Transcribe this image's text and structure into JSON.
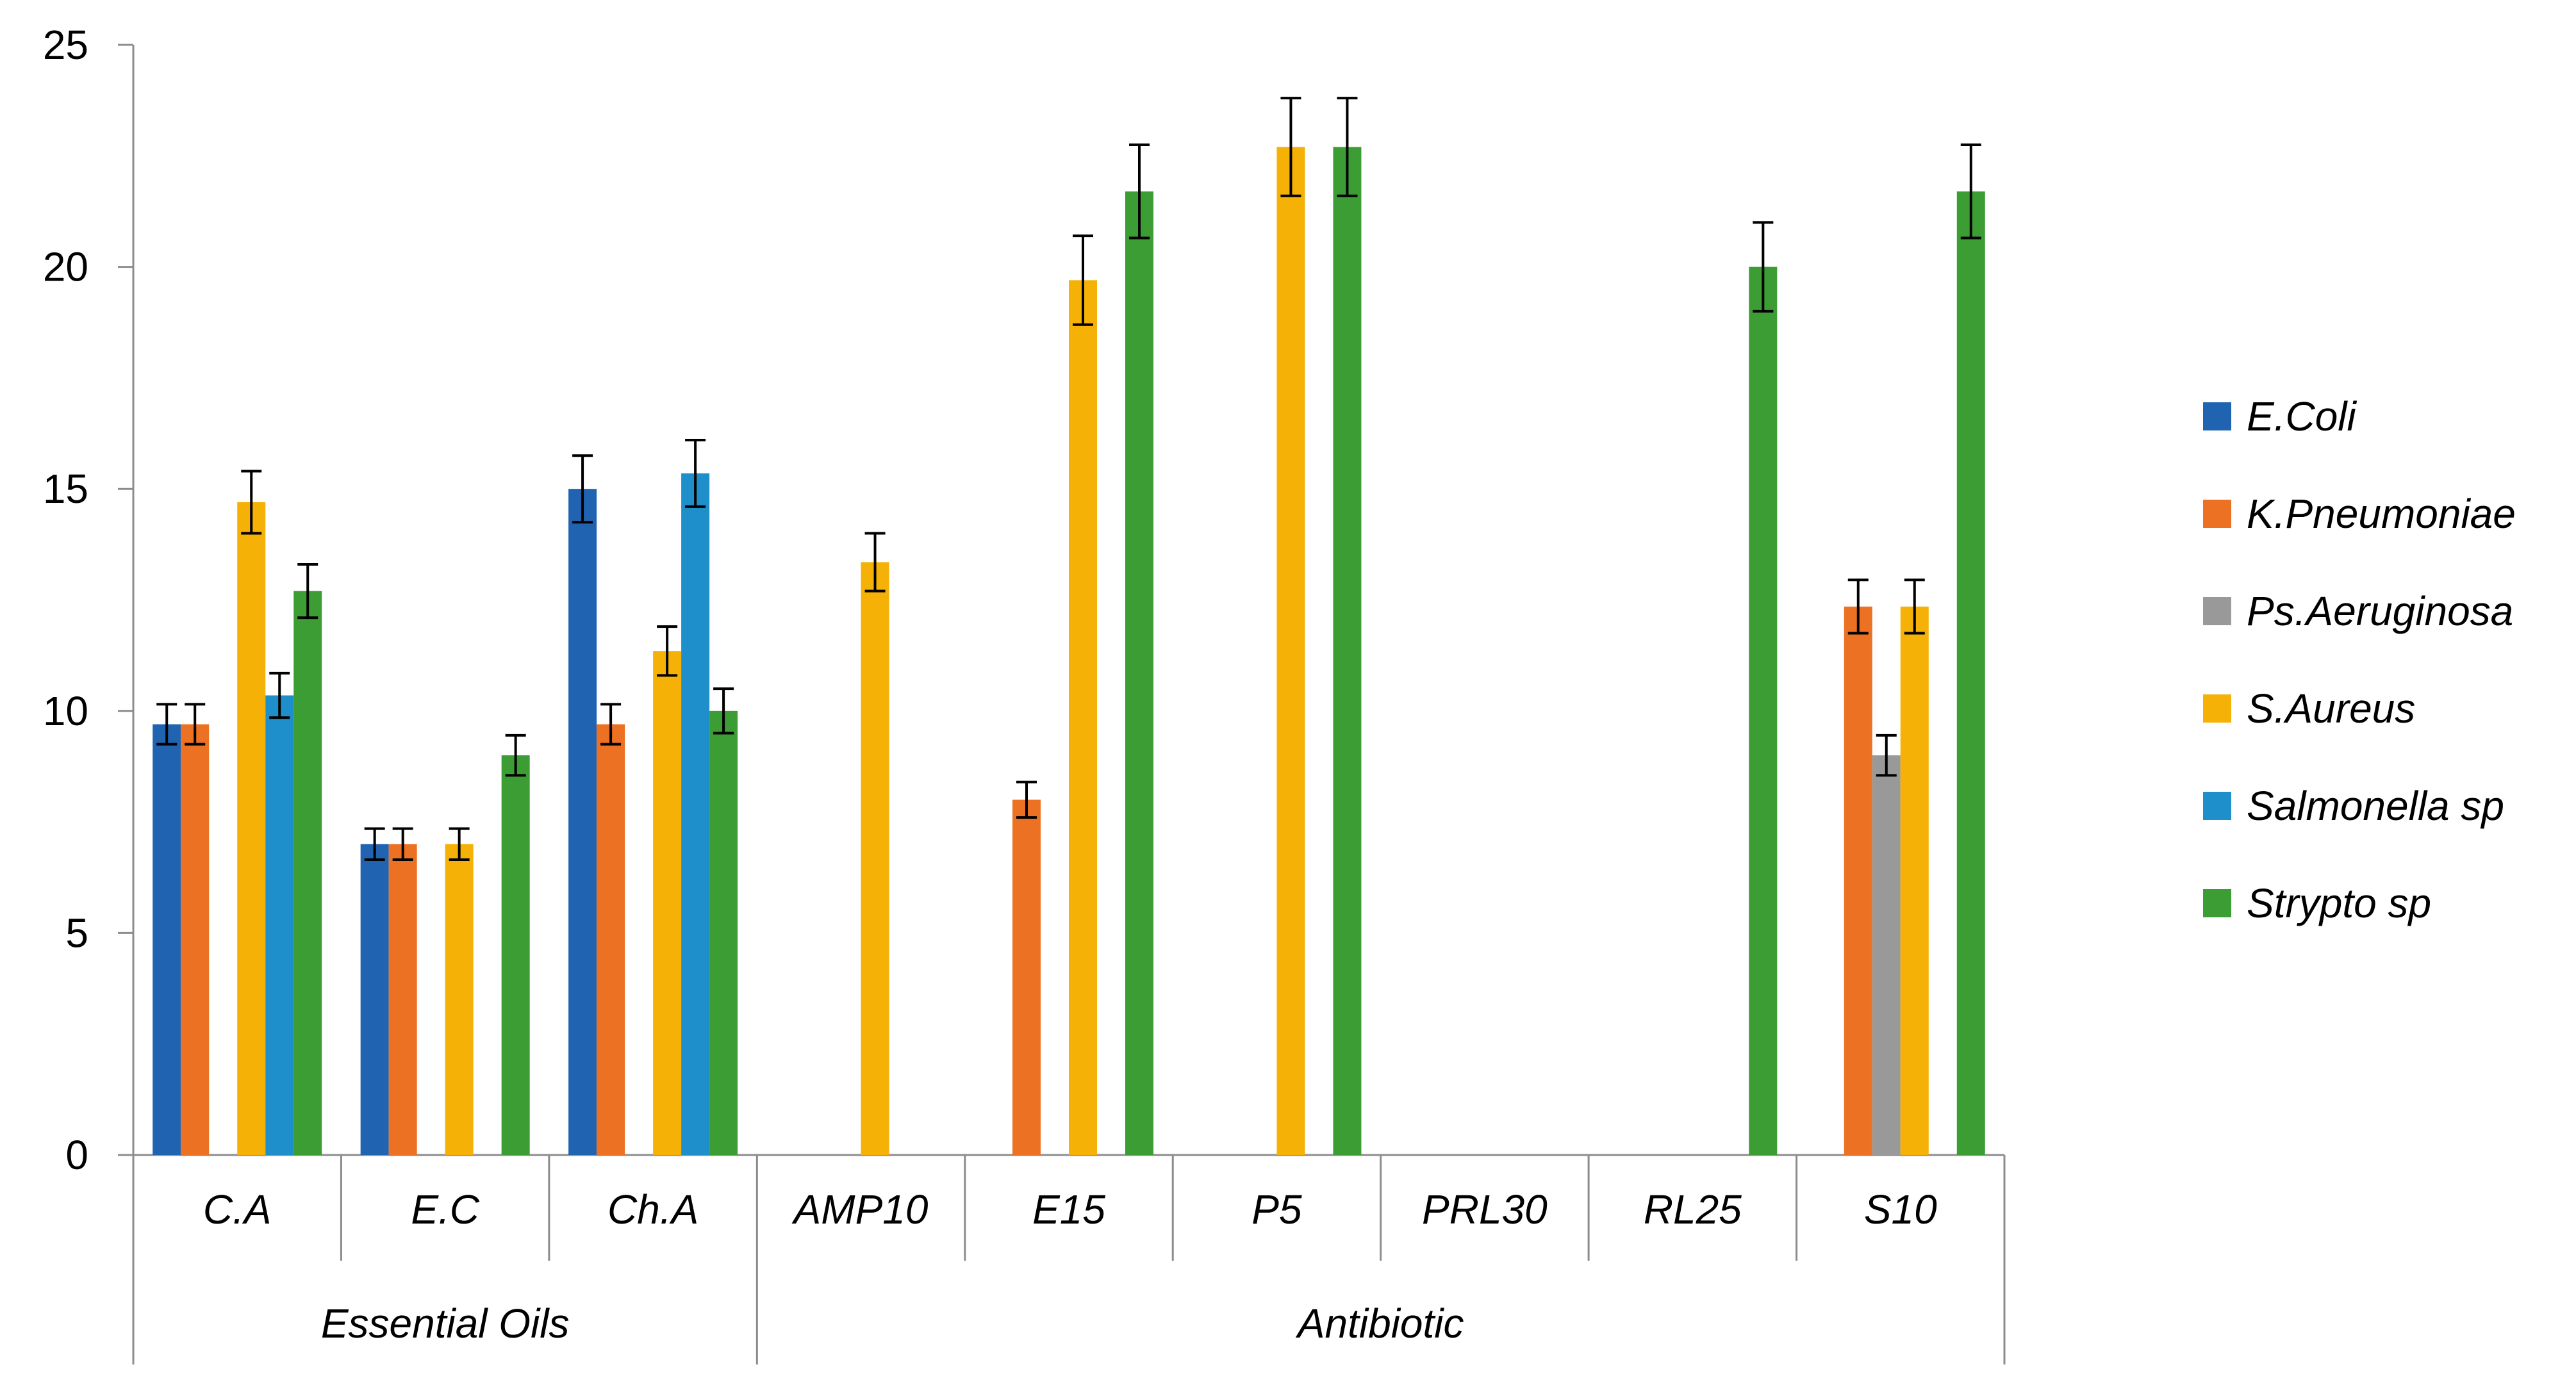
{
  "chart_data": {
    "type": "bar",
    "title": "",
    "xlabel": "",
    "ylabel": "",
    "ylim": [
      0,
      25
    ],
    "yticks": [
      0,
      5,
      10,
      15,
      20,
      25
    ],
    "legend_position": "right",
    "categories": [
      "C.A",
      "E.C",
      "Ch.A",
      "AMP10",
      "E15",
      "P5",
      "PRL30",
      "RL25",
      "S10"
    ],
    "groups": [
      {
        "label": "Essential Oils",
        "span": [
          0,
          2
        ]
      },
      {
        "label": "Antibiotic",
        "span": [
          3,
          8
        ]
      }
    ],
    "series": [
      {
        "name": "E.Coli",
        "color": "#1F63B1",
        "values": [
          9.7,
          7.0,
          15.0,
          null,
          null,
          null,
          null,
          null,
          null
        ],
        "errors": [
          0.45,
          0.35,
          0.75,
          null,
          null,
          null,
          null,
          null,
          null
        ]
      },
      {
        "name": "K.Pneumoniae",
        "color": "#ED7123",
        "values": [
          9.7,
          7.0,
          9.7,
          null,
          8.0,
          null,
          null,
          null,
          12.35
        ],
        "errors": [
          0.45,
          0.35,
          0.45,
          null,
          0.4,
          null,
          null,
          null,
          0.6
        ]
      },
      {
        "name": "Ps.Aeruginosa",
        "color": "#999999",
        "values": [
          null,
          null,
          null,
          null,
          null,
          null,
          null,
          null,
          9.0
        ],
        "errors": [
          null,
          null,
          null,
          null,
          null,
          null,
          null,
          null,
          0.45
        ]
      },
      {
        "name": "S.Aureus",
        "color": "#F5B105",
        "values": [
          14.7,
          7.0,
          11.35,
          13.35,
          19.7,
          22.7,
          null,
          null,
          12.35
        ],
        "errors": [
          0.7,
          0.35,
          0.55,
          0.65,
          1.0,
          1.1,
          null,
          null,
          0.6
        ]
      },
      {
        "name": "Salmonella sp",
        "color": "#1E8FCB",
        "values": [
          10.35,
          null,
          15.35,
          null,
          null,
          null,
          null,
          null,
          null
        ],
        "errors": [
          0.5,
          null,
          0.75,
          null,
          null,
          null,
          null,
          null,
          null
        ]
      },
      {
        "name": "Strypto sp",
        "color": "#3B9D34",
        "values": [
          12.7,
          9.0,
          10.0,
          null,
          21.7,
          22.7,
          null,
          20.0,
          21.7
        ],
        "errors": [
          0.6,
          0.45,
          0.5,
          null,
          1.05,
          1.1,
          null,
          1.0,
          1.05
        ]
      }
    ]
  }
}
